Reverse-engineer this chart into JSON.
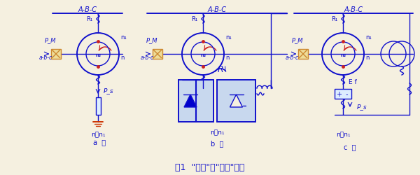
{
  "bg_color": "#f5f0e0",
  "main_color": "#1010cc",
  "red_color": "#cc2020",
  "orange_color": "#cc8830",
  "title": "图1  \"单馈\"与\"双馈\"电机",
  "sections": {
    "a": {
      "label": "a）",
      "sub_n": "n＜n₁",
      "abc": "A-B-C"
    },
    "b": {
      "label": "b）",
      "sub_n": "n＜n₁",
      "abc": "A-B-C"
    },
    "c": {
      "label": "c）",
      "sub_n": "n＞n₁",
      "abc": "A-B-C"
    }
  }
}
